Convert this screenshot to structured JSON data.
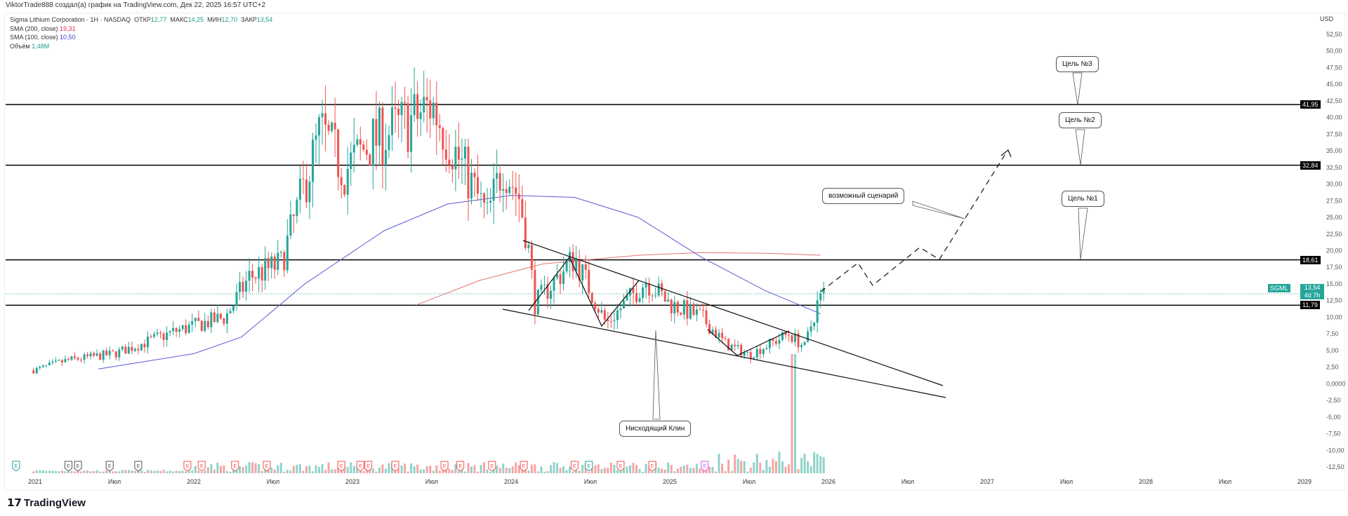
{
  "credit": "ViktorTrade888 создал(а) график на TradingView.com, Дек 22, 2025 16:57 UTC+2",
  "legend": {
    "symbol": "Sigma Lithium Corporation · 1Н · NASDAQ",
    "open_label": "ОТКР",
    "open": "12,77",
    "high_label": "МАКС",
    "high": "14,25",
    "low_label": "МИН",
    "low": "12,70",
    "close_label": "ЗАКР",
    "close": "13,54",
    "sma200_label": "SMA (200, close)",
    "sma200": "19,31",
    "sma100_label": "SMA (100, close)",
    "sma100": "10,50",
    "volume_label": "Объём",
    "volume": "1,48M"
  },
  "currency": "USD",
  "price_levels": [
    {
      "value": "41,95",
      "p": 41.95
    },
    {
      "value": "32,84",
      "p": 32.84
    },
    {
      "value": "18,61",
      "p": 18.61
    },
    {
      "value": "11,79",
      "p": 11.79
    }
  ],
  "last_price": {
    "ticker": "SGML",
    "value": "13,54",
    "countdown": "4d 7h",
    "p": 13.54
  },
  "annotations": {
    "target3": "Цель №3",
    "target2": "Цель №2",
    "target1": "Цель №1",
    "scenario": "возможный сценарий",
    "wedge": "Нисходящий Клин"
  },
  "brand": "TradingView",
  "colors": {
    "up": "#26a69a",
    "down": "#ef5350",
    "sma100": "#5b5bd6",
    "sma200": "#e57373"
  },
  "chart_data": {
    "type": "candlestick",
    "yticks": [
      "52,50",
      "50,00",
      "47,50",
      "45,00",
      "42,50",
      "40,00",
      "37,50",
      "35,00",
      "32,50",
      "30,00",
      "27,50",
      "25,00",
      "22,50",
      "20,00",
      "17,50",
      "15,00",
      "12,50",
      "10,00",
      "7,50",
      "5,00",
      "2,50",
      "0,0000",
      "-2,50",
      "-5,00",
      "-7,50",
      "-10,00",
      "-12,50"
    ],
    "ylim": [
      -12.5,
      52.5
    ],
    "xticks": [
      {
        "t": 2021,
        "label": "2021"
      },
      {
        "t": 2021.5,
        "label": "Июл"
      },
      {
        "t": 2022,
        "label": "2022"
      },
      {
        "t": 2022.5,
        "label": "Июл"
      },
      {
        "t": 2023,
        "label": "2023"
      },
      {
        "t": 2023.5,
        "label": "Июл"
      },
      {
        "t": 2024,
        "label": "2024"
      },
      {
        "t": 2024.5,
        "label": "Июл"
      },
      {
        "t": 2025,
        "label": "2025"
      },
      {
        "t": 2025.5,
        "label": "Июл"
      },
      {
        "t": 2026,
        "label": "2026"
      },
      {
        "t": 2026.5,
        "label": "Июл"
      },
      {
        "t": 2027,
        "label": "2027"
      },
      {
        "t": 2027.5,
        "label": "Июл"
      },
      {
        "t": 2028,
        "label": "2028"
      },
      {
        "t": 2028.5,
        "label": "Июл"
      },
      {
        "t": 2029,
        "label": "2029"
      }
    ],
    "price_path": [
      [
        2020.99,
        2
      ],
      [
        2021.2,
        3.5
      ],
      [
        2021.5,
        4.5
      ],
      [
        2021.9,
        8
      ],
      [
        2022.2,
        10
      ],
      [
        2022.35,
        16
      ],
      [
        2022.55,
        18
      ],
      [
        2022.7,
        30
      ],
      [
        2022.8,
        38
      ],
      [
        2022.95,
        32
      ],
      [
        2023.1,
        36
      ],
      [
        2023.4,
        40
      ],
      [
        2023.5,
        42
      ],
      [
        2023.6,
        37
      ],
      [
        2023.75,
        30
      ],
      [
        2023.85,
        25
      ],
      [
        2023.95,
        33
      ],
      [
        2024.05,
        28
      ],
      [
        2024.1,
        22
      ],
      [
        2024.15,
        12
      ],
      [
        2024.4,
        19
      ],
      [
        2024.6,
        9
      ],
      [
        2024.85,
        15.5
      ],
      [
        2025.0,
        12
      ],
      [
        2025.2,
        10
      ],
      [
        2025.35,
        6
      ],
      [
        2025.5,
        4.3
      ],
      [
        2025.75,
        7.5
      ],
      [
        2025.85,
        5.5
      ],
      [
        2025.93,
        12
      ],
      [
        2025.97,
        13.54
      ]
    ],
    "sma100": [
      [
        2021.4,
        2.2
      ],
      [
        2022.0,
        4.5
      ],
      [
        2022.3,
        7
      ],
      [
        2022.7,
        15
      ],
      [
        2023.2,
        23
      ],
      [
        2023.6,
        27
      ],
      [
        2024.0,
        28.3
      ],
      [
        2024.4,
        28
      ],
      [
        2024.8,
        25
      ],
      [
        2025.2,
        19
      ],
      [
        2025.6,
        14
      ],
      [
        2025.95,
        10.5
      ]
    ],
    "sma200": [
      [
        2023.4,
        11.8
      ],
      [
        2023.8,
        15.5
      ],
      [
        2024.2,
        18
      ],
      [
        2024.8,
        19.3
      ],
      [
        2025.2,
        19.7
      ],
      [
        2025.6,
        19.6
      ],
      [
        2025.95,
        19.31
      ]
    ],
    "earnings": [
      {
        "t": 2020.88,
        "k": "g"
      },
      {
        "t": 2021.21,
        "k": "k"
      },
      {
        "t": 2021.27,
        "k": "k"
      },
      {
        "t": 2021.47,
        "k": "k"
      },
      {
        "t": 2021.65,
        "k": "k"
      },
      {
        "t": 2021.96,
        "k": "r"
      },
      {
        "t": 2022.05,
        "k": "r"
      },
      {
        "t": 2022.26,
        "k": "r"
      },
      {
        "t": 2022.46,
        "k": "r"
      },
      {
        "t": 2022.93,
        "k": "r"
      },
      {
        "t": 2023.05,
        "k": "r"
      },
      {
        "t": 2023.1,
        "k": "r"
      },
      {
        "t": 2023.27,
        "k": "r"
      },
      {
        "t": 2023.58,
        "k": "r"
      },
      {
        "t": 2023.68,
        "k": "r"
      },
      {
        "t": 2023.88,
        "k": "r"
      },
      {
        "t": 2024.08,
        "k": "r"
      },
      {
        "t": 2024.4,
        "k": "r"
      },
      {
        "t": 2024.49,
        "k": "g"
      },
      {
        "t": 2024.69,
        "k": "r"
      },
      {
        "t": 2024.89,
        "k": "r"
      },
      {
        "t": 2025.22,
        "k": "p"
      }
    ]
  }
}
